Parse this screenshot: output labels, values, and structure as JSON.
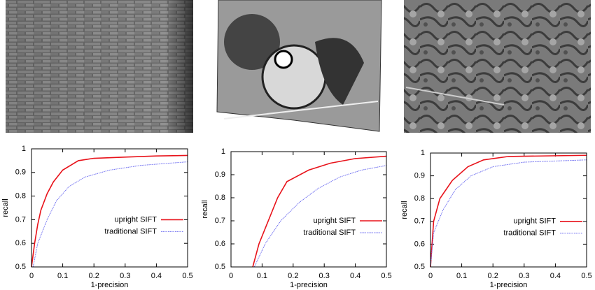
{
  "chart_data": [
    {
      "type": "line",
      "xlabel": "1-precision",
      "ylabel": "recall",
      "xlim": [
        0,
        0.5
      ],
      "ylim": [
        0.5,
        1
      ],
      "xticks": [
        0,
        0.1,
        0.2,
        0.3,
        0.4,
        0.5
      ],
      "yticks": [
        0.5,
        0.6,
        0.7,
        0.8,
        0.9,
        1
      ],
      "legend": "right",
      "series": [
        {
          "name": "upright SIFT",
          "color": "#e8121a",
          "x": [
            0,
            0.01,
            0.02,
            0.03,
            0.05,
            0.07,
            0.1,
            0.15,
            0.2,
            0.3,
            0.4,
            0.5
          ],
          "values": [
            0.5,
            0.6,
            0.68,
            0.74,
            0.81,
            0.86,
            0.91,
            0.95,
            0.96,
            0.965,
            0.97,
            0.972
          ]
        },
        {
          "name": "traditional SIFT",
          "color": "#6c6cf0",
          "x": [
            0.005,
            0.02,
            0.05,
            0.08,
            0.12,
            0.17,
            0.25,
            0.35,
            0.5
          ],
          "values": [
            0.5,
            0.6,
            0.7,
            0.78,
            0.84,
            0.88,
            0.91,
            0.93,
            0.945
          ]
        }
      ]
    },
    {
      "type": "line",
      "xlabel": "1-precision",
      "ylabel": "recall",
      "xlim": [
        0,
        0.5
      ],
      "ylim": [
        0.5,
        1
      ],
      "xticks": [
        0,
        0.1,
        0.2,
        0.3,
        0.4,
        0.5
      ],
      "yticks": [
        0.5,
        0.6,
        0.7,
        0.8,
        0.9,
        1
      ],
      "legend": "right",
      "series": [
        {
          "name": "upright SIFT",
          "color": "#e8121a",
          "x": [
            0.07,
            0.09,
            0.12,
            0.15,
            0.18,
            0.25,
            0.32,
            0.4,
            0.5
          ],
          "values": [
            0.5,
            0.6,
            0.7,
            0.8,
            0.87,
            0.92,
            0.95,
            0.97,
            0.98
          ]
        },
        {
          "name": "traditional SIFT",
          "color": "#6c6cf0",
          "x": [
            0.075,
            0.11,
            0.16,
            0.22,
            0.28,
            0.35,
            0.42,
            0.5
          ],
          "values": [
            0.5,
            0.6,
            0.7,
            0.78,
            0.84,
            0.89,
            0.92,
            0.94
          ]
        }
      ]
    },
    {
      "type": "line",
      "xlabel": "1-precision",
      "ylabel": "recall",
      "xlim": [
        0,
        0.5
      ],
      "ylim": [
        0.5,
        1
      ],
      "xticks": [
        0,
        0.1,
        0.2,
        0.3,
        0.4,
        0.5
      ],
      "yticks": [
        0.5,
        0.6,
        0.7,
        0.8,
        0.9,
        1
      ],
      "legend": "right",
      "series": [
        {
          "name": "upright SIFT",
          "color": "#e8121a",
          "x": [
            0,
            0.01,
            0.03,
            0.07,
            0.12,
            0.17,
            0.25,
            0.5
          ],
          "values": [
            0.5,
            0.7,
            0.8,
            0.88,
            0.94,
            0.97,
            0.985,
            0.99
          ]
        },
        {
          "name": "traditional SIFT",
          "color": "#6c6cf0",
          "x": [
            0,
            0.01,
            0.04,
            0.08,
            0.13,
            0.2,
            0.3,
            0.5
          ],
          "values": [
            0.5,
            0.65,
            0.75,
            0.84,
            0.9,
            0.94,
            0.96,
            0.97
          ]
        }
      ]
    }
  ]
}
